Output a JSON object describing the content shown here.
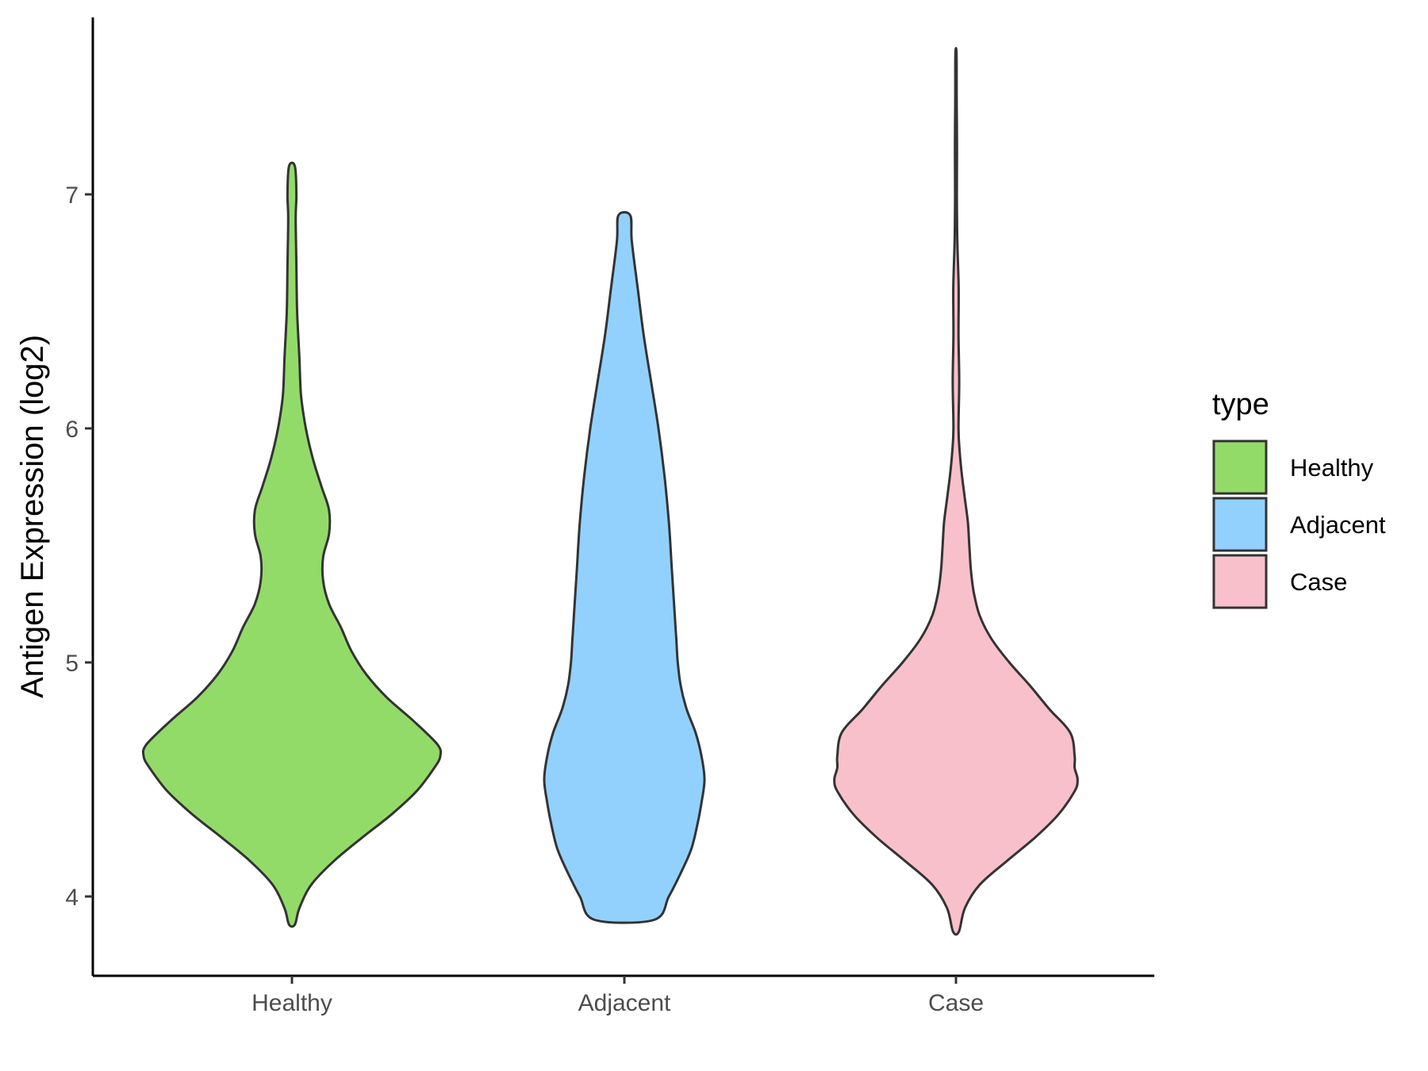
{
  "chart_data": {
    "type": "violin",
    "title": "",
    "xlabel": "",
    "ylabel": "Antigen Expression (log2)",
    "categories": [
      "Healthy",
      "Adjacent",
      "Case"
    ],
    "ylim": [
      3.67,
      7.78
    ],
    "yticks": [
      4,
      5,
      6,
      7
    ],
    "grid": false,
    "legend": {
      "title": "type",
      "position": "right",
      "entries": [
        "Healthy",
        "Adjacent",
        "Case"
      ]
    },
    "colors": {
      "Healthy": "#93DB69",
      "Adjacent": "#92D1FE",
      "Case": "#F8C0CB",
      "outline": "#333333"
    },
    "series": [
      {
        "category": "Healthy",
        "y_min": 3.88,
        "y_max": 7.12,
        "density_profile": [
          [
            3.88,
            0.02
          ],
          [
            3.95,
            0.05
          ],
          [
            4.05,
            0.13
          ],
          [
            4.15,
            0.28
          ],
          [
            4.25,
            0.47
          ],
          [
            4.35,
            0.67
          ],
          [
            4.45,
            0.84
          ],
          [
            4.55,
            0.96
          ],
          [
            4.6,
            1.0
          ],
          [
            4.65,
            0.98
          ],
          [
            4.75,
            0.82
          ],
          [
            4.85,
            0.64
          ],
          [
            4.95,
            0.5
          ],
          [
            5.05,
            0.4
          ],
          [
            5.15,
            0.33
          ],
          [
            5.25,
            0.25
          ],
          [
            5.35,
            0.21
          ],
          [
            5.45,
            0.21
          ],
          [
            5.55,
            0.25
          ],
          [
            5.65,
            0.25
          ],
          [
            5.75,
            0.2
          ],
          [
            5.85,
            0.15
          ],
          [
            5.95,
            0.11
          ],
          [
            6.05,
            0.08
          ],
          [
            6.15,
            0.06
          ],
          [
            6.3,
            0.05
          ],
          [
            6.5,
            0.035
          ],
          [
            6.7,
            0.03
          ],
          [
            6.9,
            0.025
          ],
          [
            7.0,
            0.03
          ],
          [
            7.12,
            0.02
          ]
        ]
      },
      {
        "category": "Adjacent",
        "y_min": 3.9,
        "y_max": 6.91,
        "density_profile": [
          [
            3.9,
            0.2
          ],
          [
            4.0,
            0.3
          ],
          [
            4.1,
            0.38
          ],
          [
            4.2,
            0.45
          ],
          [
            4.3,
            0.49
          ],
          [
            4.4,
            0.52
          ],
          [
            4.5,
            0.54
          ],
          [
            4.6,
            0.52
          ],
          [
            4.7,
            0.48
          ],
          [
            4.8,
            0.42
          ],
          [
            4.9,
            0.38
          ],
          [
            5.0,
            0.36
          ],
          [
            5.1,
            0.35
          ],
          [
            5.2,
            0.34
          ],
          [
            5.4,
            0.32
          ],
          [
            5.6,
            0.3
          ],
          [
            5.8,
            0.27
          ],
          [
            6.0,
            0.23
          ],
          [
            6.2,
            0.18
          ],
          [
            6.4,
            0.13
          ],
          [
            6.6,
            0.09
          ],
          [
            6.8,
            0.05
          ],
          [
            6.91,
            0.04
          ]
        ]
      },
      {
        "category": "Case",
        "y_min": 3.85,
        "y_max": 7.6,
        "density_profile": [
          [
            3.85,
            0.02
          ],
          [
            3.95,
            0.06
          ],
          [
            4.05,
            0.16
          ],
          [
            4.15,
            0.34
          ],
          [
            4.25,
            0.53
          ],
          [
            4.35,
            0.69
          ],
          [
            4.45,
            0.8
          ],
          [
            4.5,
            0.82
          ],
          [
            4.55,
            0.8
          ],
          [
            4.6,
            0.8
          ],
          [
            4.7,
            0.77
          ],
          [
            4.8,
            0.63
          ],
          [
            4.9,
            0.5
          ],
          [
            5.0,
            0.36
          ],
          [
            5.1,
            0.24
          ],
          [
            5.2,
            0.16
          ],
          [
            5.3,
            0.12
          ],
          [
            5.4,
            0.1
          ],
          [
            5.5,
            0.09
          ],
          [
            5.6,
            0.08
          ],
          [
            5.7,
            0.06
          ],
          [
            5.8,
            0.04
          ],
          [
            5.9,
            0.025
          ],
          [
            6.0,
            0.017
          ],
          [
            6.2,
            0.022
          ],
          [
            6.4,
            0.017
          ],
          [
            6.6,
            0.018
          ],
          [
            6.8,
            0.009
          ],
          [
            7.0,
            0.006
          ],
          [
            7.2,
            0.007
          ],
          [
            7.4,
            0.005
          ],
          [
            7.6,
            0.004
          ]
        ]
      }
    ]
  }
}
